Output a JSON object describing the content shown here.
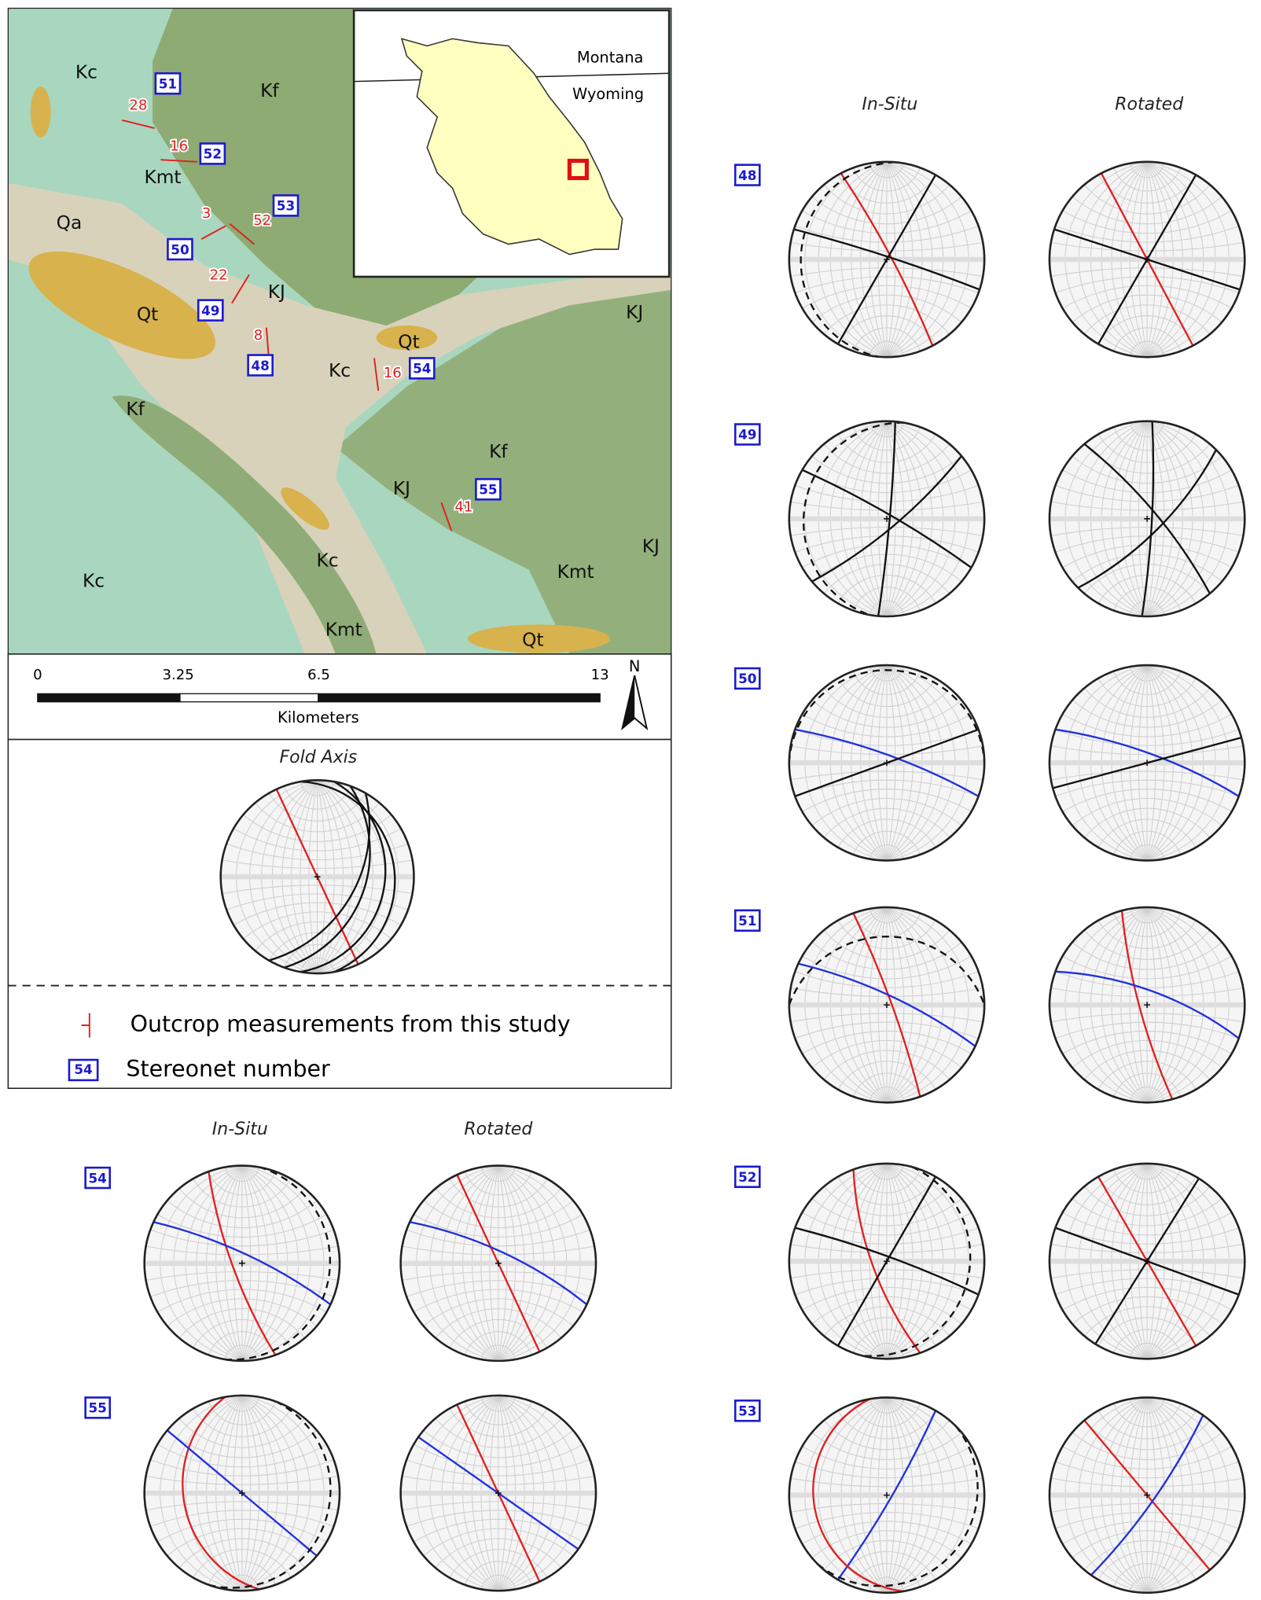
{
  "map": {
    "unit_labels": [
      "Kc",
      "Kf",
      "Kmt",
      "Qa",
      "Qt",
      "KJ",
      "KJ",
      "Qt",
      "Kc",
      "Kf",
      "Kf",
      "KJ",
      "KJ",
      "Kmt",
      "Kc",
      "Kc",
      "Kmt",
      "Qt"
    ],
    "stations": [
      51,
      52,
      53,
      50,
      49,
      48,
      54,
      55
    ],
    "dips": [
      28,
      16,
      3,
      52,
      22,
      8,
      16,
      41
    ],
    "inset": {
      "labels": [
        "Montana",
        "Wyoming"
      ]
    },
    "scale": {
      "ticks": [
        0,
        3.25,
        6.5,
        13
      ],
      "unit": "Kilometers"
    },
    "north": "N"
  },
  "fold_axis": {
    "title": "Fold Axis"
  },
  "legend": {
    "items": [
      {
        "label": "Outcrop measurements from this study"
      },
      {
        "symbol": 54,
        "label": "Stereonet number"
      }
    ]
  },
  "stereonets": {
    "right": {
      "headers": [
        "In-Situ",
        "Rotated"
      ],
      "panels": [
        48,
        49,
        50,
        51,
        52,
        53
      ]
    },
    "bottom": {
      "headers": [
        "In-Situ",
        "Rotated"
      ],
      "panels": [
        54,
        55
      ]
    }
  }
}
